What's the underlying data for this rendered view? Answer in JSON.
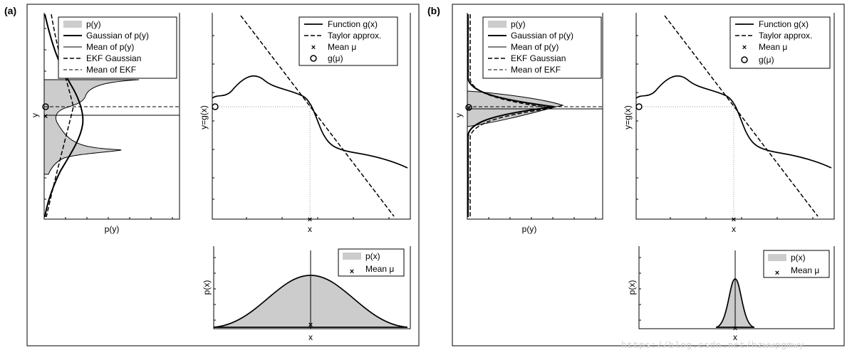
{
  "panels": [
    {
      "tag": "(a)",
      "py_plot": {
        "ylabel": "y",
        "xlabel": "p(y)"
      },
      "gx_plot": {
        "ylabel": "y=g(x)",
        "xlabel": "x"
      },
      "px_plot": {
        "ylabel": "p(x)",
        "xlabel": "x"
      },
      "legend_py": [
        "p(y)",
        "Gaussian of p(y)",
        "Mean of p(y)",
        "EKF Gaussian",
        "Mean of EKF"
      ],
      "legend_gx": [
        "Function g(x)",
        "Taylor approx.",
        "Mean μ",
        "g(μ)"
      ],
      "legend_px": [
        "p(x)",
        "Mean μ"
      ]
    },
    {
      "tag": "(b)",
      "py_plot": {
        "ylabel": "y",
        "xlabel": "p(y)"
      },
      "gx_plot": {
        "ylabel": "y=g(x)",
        "xlabel": "x"
      },
      "px_plot": {
        "ylabel": "p(x)",
        "xlabel": "x"
      },
      "legend_py": [
        "p(y)",
        "Gaussian of p(y)",
        "Mean of p(y)",
        "EKF Gaussian",
        "Mean of EKF"
      ],
      "legend_gx": [
        "Function g(x)",
        "Taylor approx.",
        "Mean μ",
        "g(μ)"
      ],
      "legend_px": [
        "p(x)",
        "Mean μ"
      ]
    }
  ],
  "watermark": "https://blog.csdn.net/hzwwpgmwy"
}
